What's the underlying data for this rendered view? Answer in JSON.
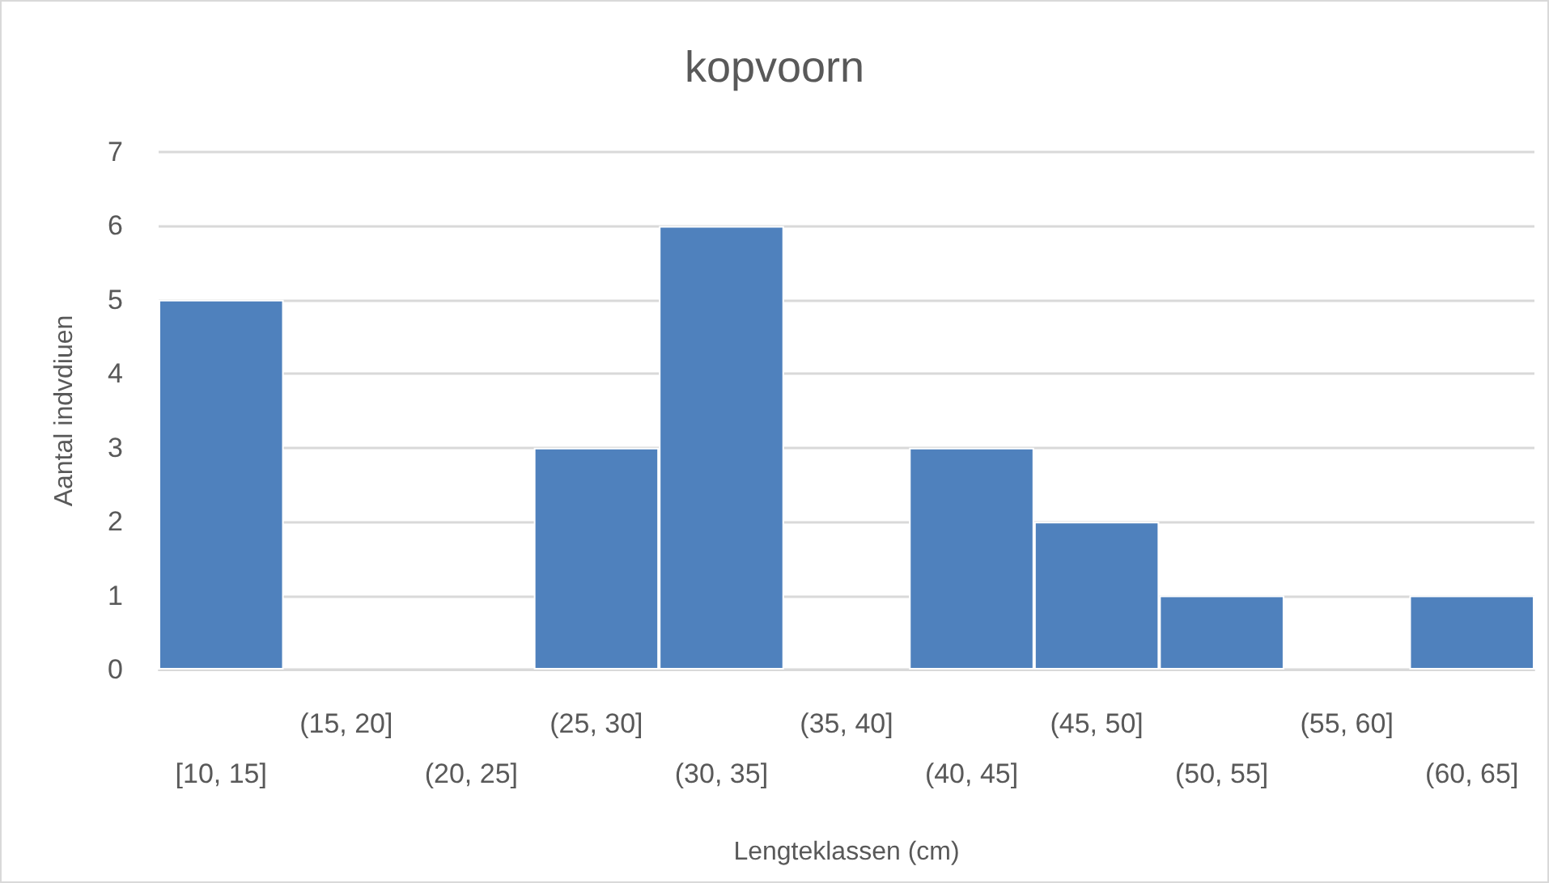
{
  "chart_data": {
    "type": "bar",
    "title": "kopvoorn",
    "xlabel": "Lengteklassen (cm)",
    "ylabel": "Aantal indvdiuen",
    "categories": [
      "[10, 15]",
      "(15, 20]",
      "(20, 25]",
      "(25, 30]",
      "(30, 35]",
      "(35, 40]",
      "(40, 45]",
      "(45, 50]",
      "(50, 55]",
      "(55, 60]",
      "(60, 65]"
    ],
    "values": [
      5,
      0,
      0,
      3,
      6,
      0,
      3,
      2,
      1,
      0,
      1
    ],
    "color": "#4f81bd",
    "ylim": [
      0,
      7
    ],
    "yticks": [
      0,
      1,
      2,
      3,
      4,
      5,
      6,
      7
    ],
    "grid": "y"
  }
}
